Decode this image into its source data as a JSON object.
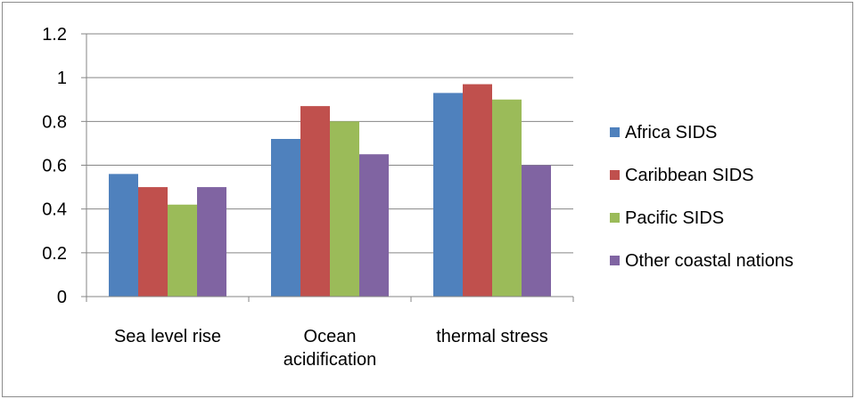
{
  "chart_data": {
    "type": "bar",
    "categories": [
      [
        "Sea level rise"
      ],
      [
        "Ocean",
        "acidification"
      ],
      [
        "thermal stress"
      ]
    ],
    "series": [
      {
        "name": "Africa SIDS",
        "color": "#4f81bd",
        "values": [
          0.56,
          0.72,
          0.93
        ]
      },
      {
        "name": "Caribbean SIDS",
        "color": "#c0504d",
        "values": [
          0.5,
          0.87,
          0.97
        ]
      },
      {
        "name": "Pacific SIDS",
        "color": "#9bbb59",
        "values": [
          0.42,
          0.8,
          0.9
        ]
      },
      {
        "name": "Other coastal nations",
        "color": "#8064a2",
        "values": [
          0.5,
          0.65,
          0.6
        ]
      }
    ],
    "yticks": [
      "0",
      "0.2",
      "0.4",
      "0.6",
      "0.8",
      "1",
      "1.2"
    ],
    "ylim": [
      0,
      1.2
    ],
    "grid": true,
    "legend_position": "right",
    "title": "",
    "xlabel": "",
    "ylabel": ""
  }
}
